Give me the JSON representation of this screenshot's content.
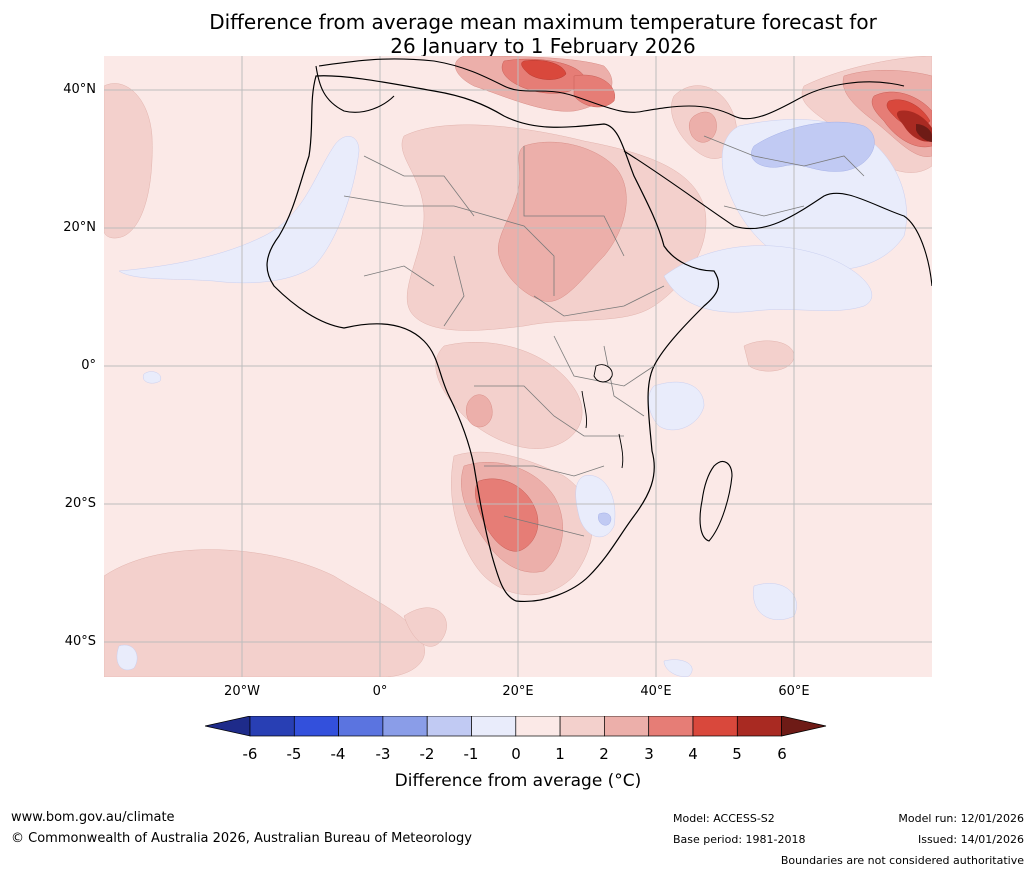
{
  "title": {
    "line1": "Difference from average mean maximum temperature forecast for",
    "line2": "26 January to 1 February 2026"
  },
  "map": {
    "region": "Africa",
    "y_labels": [
      "40°N",
      "20°N",
      "0°",
      "20°S",
      "40°S"
    ],
    "x_labels": [
      "20°W",
      "0°",
      "20°E",
      "40°E",
      "60°E"
    ]
  },
  "colorbar": {
    "ticks": [
      "-6",
      "-5",
      "-4",
      "-3",
      "-2",
      "-1",
      "0",
      "1",
      "2",
      "3",
      "4",
      "5",
      "6"
    ],
    "colors": [
      "#1e2b8a",
      "#283fb4",
      "#3350dc",
      "#5b74e0",
      "#8a9de8",
      "#c1caf3",
      "#e9ecfb",
      "#fbe9e7",
      "#f3d0cc",
      "#ecafaa",
      "#e67d76",
      "#d9483c",
      "#a92a22",
      "#6e1b16"
    ],
    "label": "Difference from average (°C)"
  },
  "footer": {
    "website": "www.bom.gov.au/climate",
    "copyright": "© Commonwealth of Australia 2026, Australian Bureau of Meteorology",
    "model": "Model: ACCESS-S2",
    "base_period": "Base period: 1981-2018",
    "model_run": "Model run: 12/01/2026",
    "issued": "Issued: 14/01/2026",
    "disclaimer": "Boundaries are not considered authoritative"
  }
}
